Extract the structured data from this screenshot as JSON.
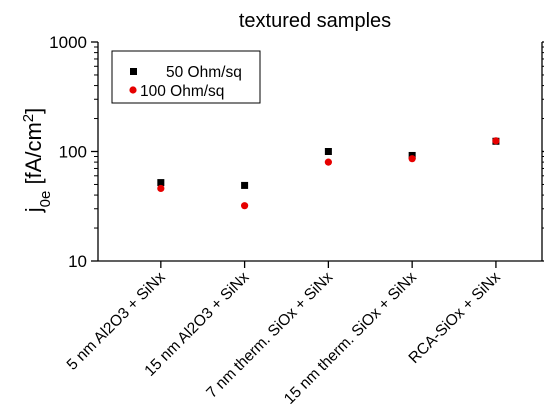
{
  "chart_data": {
    "type": "scatter",
    "title": "textured samples",
    "ylabel": "j0e [fA/cm2]",
    "ylabel_parts": {
      "main": "j",
      "sub": "0e",
      "unit_prefix": " [fA/cm",
      "unit_sup": "2",
      "unit_suffix": "]"
    },
    "yscale": "log",
    "ylim": [
      10,
      1000
    ],
    "yticks": [
      10,
      100,
      1000
    ],
    "ytick_labels": [
      "10",
      "100",
      "1000"
    ],
    "categories": [
      "5 nm Al2O3 + SiNx",
      "15 nm Al2O3 + SiNx",
      "7 nm therm. SiOx + SiNx",
      "15 nm therm. SiOx + SiNx",
      "RCA-SiOx + SiNx"
    ],
    "series": [
      {
        "name": "50 Ohm/sq",
        "marker": "square",
        "color": "#000000",
        "values": [
          52,
          49,
          100,
          92,
          124
        ]
      },
      {
        "name": "100 Ohm/sq",
        "marker": "circle",
        "color": "#e60000",
        "values": [
          46,
          32,
          80,
          86,
          125
        ]
      }
    ],
    "legend_position": "top-left",
    "grid": false
  }
}
